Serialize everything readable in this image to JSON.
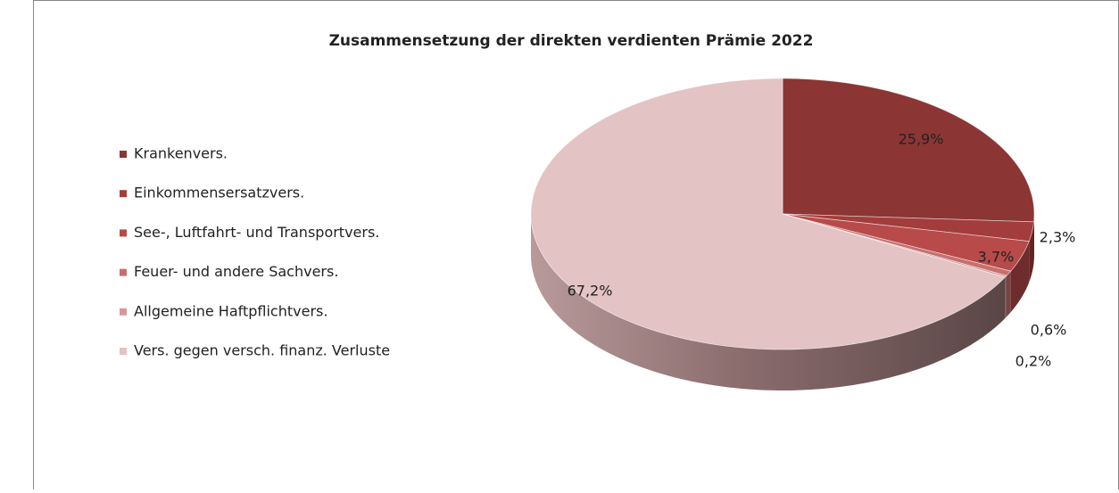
{
  "chart_data": {
    "type": "pie3d",
    "title": "Zusammensetzung der direkten verdienten Prämie  2022",
    "categories": [
      "Krankenvers.",
      "Einkommensersatzvers.",
      "See-, Luftfahrt- und Transportvers.",
      "Feuer- und andere Sachvers.",
      "Allgemeine Haftpflichtvers.",
      "Vers. gegen versch. finanz. Verluste"
    ],
    "values": [
      25.9,
      2.3,
      3.7,
      0.6,
      0.2,
      67.2
    ],
    "value_labels": [
      "25,9%",
      "2,3%",
      "3,7%",
      "0,6%",
      "0,2%",
      "67,2%"
    ],
    "colors": [
      "#8b3535",
      "#a33c3c",
      "#b84a4a",
      "#c76f6f",
      "#d49a9a",
      "#e3c3c4"
    ],
    "legend": "left"
  }
}
